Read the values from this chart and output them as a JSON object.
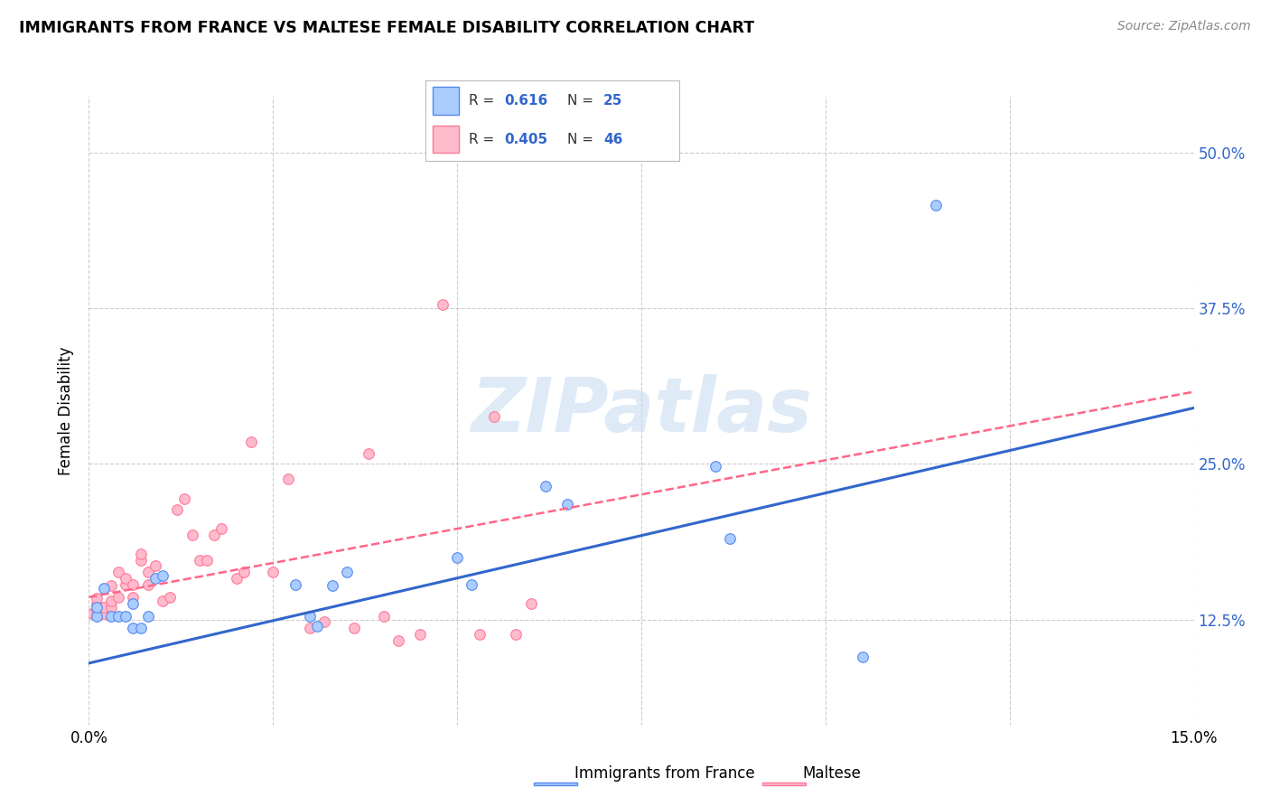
{
  "title": "IMMIGRANTS FROM FRANCE VS MALTESE FEMALE DISABILITY CORRELATION CHART",
  "source": "Source: ZipAtlas.com",
  "ylabel": "Female Disability",
  "ytick_labels": [
    "12.5%",
    "25.0%",
    "37.5%",
    "50.0%"
  ],
  "ytick_values": [
    0.125,
    0.25,
    0.375,
    0.5
  ],
  "xmin": 0.0,
  "xmax": 0.15,
  "ymin": 0.04,
  "ymax": 0.545,
  "legend_blue_r": "0.616",
  "legend_blue_n": "25",
  "legend_pink_r": "0.405",
  "legend_pink_n": "46",
  "legend_label_blue": "Immigrants from France",
  "legend_label_pink": "Maltese",
  "blue_scatter_x": [
    0.001,
    0.001,
    0.002,
    0.003,
    0.004,
    0.005,
    0.006,
    0.006,
    0.007,
    0.008,
    0.009,
    0.01,
    0.028,
    0.03,
    0.031,
    0.033,
    0.035,
    0.05,
    0.052,
    0.062,
    0.065,
    0.085,
    0.087,
    0.105,
    0.115
  ],
  "blue_scatter_y": [
    0.128,
    0.135,
    0.15,
    0.128,
    0.128,
    0.128,
    0.138,
    0.118,
    0.118,
    0.128,
    0.158,
    0.16,
    0.153,
    0.128,
    0.12,
    0.152,
    0.163,
    0.175,
    0.153,
    0.232,
    0.218,
    0.248,
    0.19,
    0.095,
    0.458
  ],
  "pink_scatter_x": [
    0.0005,
    0.001,
    0.001,
    0.001,
    0.002,
    0.002,
    0.003,
    0.003,
    0.003,
    0.004,
    0.004,
    0.005,
    0.005,
    0.006,
    0.006,
    0.007,
    0.007,
    0.008,
    0.008,
    0.009,
    0.01,
    0.011,
    0.012,
    0.013,
    0.014,
    0.015,
    0.016,
    0.017,
    0.018,
    0.02,
    0.021,
    0.022,
    0.025,
    0.027,
    0.03,
    0.032,
    0.036,
    0.038,
    0.04,
    0.042,
    0.045,
    0.048,
    0.053,
    0.055,
    0.058,
    0.06
  ],
  "pink_scatter_y": [
    0.13,
    0.133,
    0.138,
    0.142,
    0.13,
    0.135,
    0.135,
    0.14,
    0.152,
    0.143,
    0.163,
    0.153,
    0.158,
    0.143,
    0.153,
    0.173,
    0.178,
    0.153,
    0.163,
    0.168,
    0.14,
    0.143,
    0.213,
    0.222,
    0.193,
    0.173,
    0.173,
    0.193,
    0.198,
    0.158,
    0.163,
    0.268,
    0.163,
    0.238,
    0.118,
    0.123,
    0.118,
    0.258,
    0.128,
    0.108,
    0.113,
    0.378,
    0.113,
    0.288,
    0.113,
    0.138
  ],
  "blue_line_x": [
    0.0,
    0.15
  ],
  "blue_line_y": [
    0.09,
    0.295
  ],
  "pink_line_x": [
    0.0,
    0.15
  ],
  "pink_line_y": [
    0.143,
    0.308
  ],
  "blue_dot_color": "#aaccff",
  "blue_edge_color": "#5588ee",
  "pink_dot_color": "#ffbbcc",
  "pink_edge_color": "#ff7799",
  "blue_line_color": "#3366cc",
  "pink_line_color": "#ff6688",
  "grid_color": "#cccccc",
  "watermark_text": "ZIPatlas",
  "watermark_color": "#c8dcf0",
  "tick_color": "#3366cc"
}
